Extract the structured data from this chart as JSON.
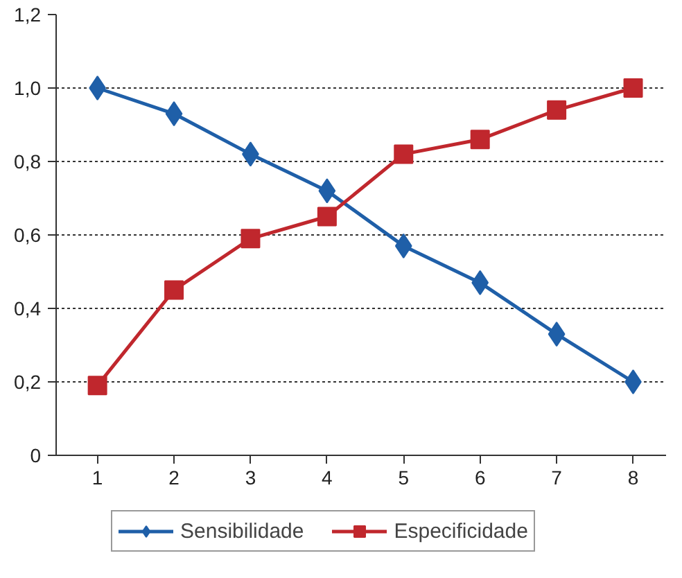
{
  "chart_data": {
    "type": "line",
    "x": [
      1,
      2,
      3,
      4,
      5,
      6,
      7,
      8
    ],
    "xlim": [
      0.46,
      8.43
    ],
    "xticks": [
      1,
      2,
      3,
      4,
      5,
      6,
      7,
      8
    ],
    "ylim": [
      0,
      1.2
    ],
    "yticks": [
      0,
      {
        "value": 0.2,
        "label": "0,2"
      },
      {
        "value": 0.4,
        "label": "0,4"
      },
      {
        "value": 0.6,
        "label": "0,6"
      },
      {
        "value": 0.8,
        "label": "0,8"
      },
      {
        "value": 1.0,
        "label": "1,0"
      },
      {
        "value": 1.2,
        "label": "1,2"
      }
    ],
    "grid": "y",
    "legend": "bottom",
    "line_style": "solid",
    "series": [
      {
        "name": "Sensibilidade",
        "color": "#1f5fa8",
        "marker": "diamond",
        "values": [
          1.0,
          0.93,
          0.82,
          0.72,
          0.57,
          0.47,
          0.33,
          0.2
        ]
      },
      {
        "name": "Especificidade",
        "color": "#c0272d",
        "marker": "square",
        "values": [
          0.19,
          0.45,
          0.59,
          0.65,
          0.82,
          0.86,
          0.94,
          1.0
        ]
      }
    ]
  }
}
